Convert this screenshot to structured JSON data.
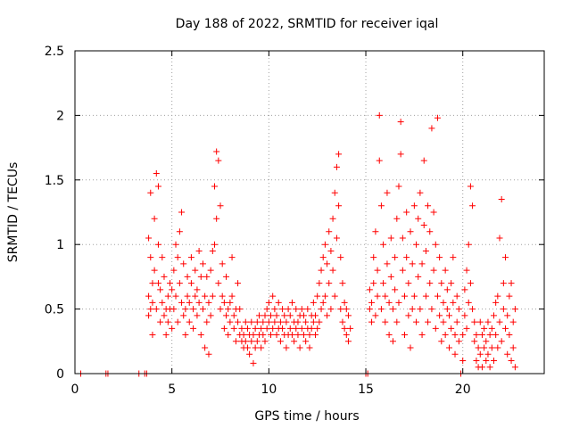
{
  "chart_data": {
    "type": "scatter",
    "title": "Day 188 of 2022, SRMTID for receiver iqal",
    "xlabel": "GPS time / hours",
    "ylabel": "SRMTID / TECUs",
    "xlim": [
      0,
      24.2
    ],
    "ylim": [
      0,
      2.5
    ],
    "xticks": [
      0,
      5,
      10,
      15,
      20
    ],
    "xtick_labels": [
      "0",
      "5",
      "10",
      "15",
      "20"
    ],
    "yticks": [
      0,
      0.5,
      1,
      1.5,
      2,
      2.5
    ],
    "ytick_labels": [
      "0",
      "0.5",
      "1",
      "1.5",
      "2",
      "2.5"
    ],
    "grid": true,
    "marker": "+",
    "color": "#ff0000",
    "points": [
      [
        0.3,
        0
      ],
      [
        1.6,
        0
      ],
      [
        1.7,
        0
      ],
      [
        3.3,
        0
      ],
      [
        3.6,
        0
      ],
      [
        3.7,
        0
      ],
      [
        3.8,
        0.45
      ],
      [
        3.8,
        0.6
      ],
      [
        3.8,
        1.05
      ],
      [
        3.9,
        1.4
      ],
      [
        3.9,
        0.9
      ],
      [
        3.9,
        0.5
      ],
      [
        4.0,
        0.55
      ],
      [
        4.0,
        0.3
      ],
      [
        4.0,
        0.7
      ],
      [
        4.1,
        1.2
      ],
      [
        4.1,
        0.8
      ],
      [
        4.2,
        1.55
      ],
      [
        4.2,
        0.5
      ],
      [
        4.3,
        1.45
      ],
      [
        4.3,
        1.0
      ],
      [
        4.3,
        0.7
      ],
      [
        4.4,
        0.65
      ],
      [
        4.4,
        0.4
      ],
      [
        4.5,
        0.55
      ],
      [
        4.5,
        0.9
      ],
      [
        4.6,
        0.45
      ],
      [
        4.6,
        0.75
      ],
      [
        4.7,
        0.5
      ],
      [
        4.7,
        0.3
      ],
      [
        4.8,
        0.6
      ],
      [
        4.8,
        0.4
      ],
      [
        4.9,
        0.7
      ],
      [
        4.9,
        0.5
      ],
      [
        5.0,
        0.35
      ],
      [
        5.0,
        0.65
      ],
      [
        5.1,
        0.8
      ],
      [
        5.1,
        0.5
      ],
      [
        5.2,
        1.0
      ],
      [
        5.2,
        0.6
      ],
      [
        5.3,
        0.9
      ],
      [
        5.3,
        0.4
      ],
      [
        5.4,
        1.1
      ],
      [
        5.4,
        0.7
      ],
      [
        5.5,
        1.25
      ],
      [
        5.5,
        0.55
      ],
      [
        5.6,
        0.45
      ],
      [
        5.6,
        0.85
      ],
      [
        5.7,
        0.5
      ],
      [
        5.7,
        0.3
      ],
      [
        5.8,
        0.6
      ],
      [
        5.8,
        0.75
      ],
      [
        5.9,
        0.4
      ],
      [
        5.9,
        0.55
      ],
      [
        6.0,
        0.7
      ],
      [
        6.0,
        0.9
      ],
      [
        6.1,
        0.5
      ],
      [
        6.1,
        0.35
      ],
      [
        6.2,
        0.6
      ],
      [
        6.2,
        0.8
      ],
      [
        6.3,
        0.45
      ],
      [
        6.3,
        0.65
      ],
      [
        6.4,
        0.95
      ],
      [
        6.4,
        0.55
      ],
      [
        6.5,
        0.75
      ],
      [
        6.5,
        0.3
      ],
      [
        6.6,
        0.85
      ],
      [
        6.6,
        0.5
      ],
      [
        6.7,
        0.6
      ],
      [
        6.7,
        0.2
      ],
      [
        6.8,
        0.75
      ],
      [
        6.8,
        0.4
      ],
      [
        6.9,
        0.55
      ],
      [
        6.9,
        0.15
      ],
      [
        7.0,
        0.8
      ],
      [
        7.0,
        0.45
      ],
      [
        7.1,
        0.95
      ],
      [
        7.1,
        0.6
      ],
      [
        7.2,
        1.45
      ],
      [
        7.2,
        1.0
      ],
      [
        7.3,
        1.72
      ],
      [
        7.3,
        1.2
      ],
      [
        7.4,
        1.65
      ],
      [
        7.4,
        0.7
      ],
      [
        7.5,
        1.3
      ],
      [
        7.5,
        0.5
      ],
      [
        7.6,
        0.6
      ],
      [
        7.6,
        0.85
      ],
      [
        7.7,
        0.35
      ],
      [
        7.7,
        0.55
      ],
      [
        7.8,
        0.45
      ],
      [
        7.8,
        0.75
      ],
      [
        7.9,
        0.5
      ],
      [
        7.9,
        0.3
      ],
      [
        8.0,
        0.55
      ],
      [
        8.0,
        0.4
      ],
      [
        8.1,
        0.9
      ],
      [
        8.1,
        0.6
      ],
      [
        8.2,
        0.45
      ],
      [
        8.2,
        0.35
      ],
      [
        8.3,
        0.5
      ],
      [
        8.3,
        0.25
      ],
      [
        8.4,
        0.7
      ],
      [
        8.4,
        0.4
      ],
      [
        8.5,
        0.3
      ],
      [
        8.5,
        0.5
      ],
      [
        8.6,
        0.25
      ],
      [
        8.6,
        0.35
      ],
      [
        8.7,
        0.3
      ],
      [
        8.7,
        0.2
      ],
      [
        8.8,
        0.4
      ],
      [
        8.8,
        0.25
      ],
      [
        8.9,
        0.2
      ],
      [
        8.9,
        0.35
      ],
      [
        9.0,
        0.3
      ],
      [
        9.0,
        0.15
      ],
      [
        9.1,
        0.25
      ],
      [
        9.1,
        0.4
      ],
      [
        9.2,
        0.08
      ],
      [
        9.2,
        0.3
      ],
      [
        9.3,
        0.35
      ],
      [
        9.3,
        0.2
      ],
      [
        9.4,
        0.4
      ],
      [
        9.4,
        0.25
      ],
      [
        9.5,
        0.3
      ],
      [
        9.5,
        0.45
      ],
      [
        9.6,
        0.35
      ],
      [
        9.6,
        0.2
      ],
      [
        9.7,
        0.4
      ],
      [
        9.7,
        0.3
      ],
      [
        9.8,
        0.45
      ],
      [
        9.8,
        0.25
      ],
      [
        9.9,
        0.35
      ],
      [
        9.9,
        0.5
      ],
      [
        10.0,
        0.4
      ],
      [
        10.0,
        0.55
      ],
      [
        10.1,
        0.3
      ],
      [
        10.1,
        0.45
      ],
      [
        10.2,
        0.6
      ],
      [
        10.2,
        0.35
      ],
      [
        10.3,
        0.5
      ],
      [
        10.3,
        0.4
      ],
      [
        10.4,
        0.45
      ],
      [
        10.4,
        0.3
      ],
      [
        10.5,
        0.55
      ],
      [
        10.5,
        0.35
      ],
      [
        10.6,
        0.4
      ],
      [
        10.6,
        0.25
      ],
      [
        10.7,
        0.5
      ],
      [
        10.7,
        0.35
      ],
      [
        10.8,
        0.45
      ],
      [
        10.8,
        0.3
      ],
      [
        10.9,
        0.4
      ],
      [
        10.9,
        0.2
      ],
      [
        11.0,
        0.5
      ],
      [
        11.0,
        0.3
      ],
      [
        11.1,
        0.35
      ],
      [
        11.1,
        0.45
      ],
      [
        11.2,
        0.3
      ],
      [
        11.2,
        0.55
      ],
      [
        11.3,
        0.4
      ],
      [
        11.3,
        0.25
      ],
      [
        11.4,
        0.35
      ],
      [
        11.4,
        0.5
      ],
      [
        11.5,
        0.3
      ],
      [
        11.5,
        0.4
      ],
      [
        11.6,
        0.45
      ],
      [
        11.6,
        0.2
      ],
      [
        11.7,
        0.35
      ],
      [
        11.7,
        0.5
      ],
      [
        11.8,
        0.3
      ],
      [
        11.8,
        0.45
      ],
      [
        11.9,
        0.25
      ],
      [
        11.9,
        0.4
      ],
      [
        12.0,
        0.35
      ],
      [
        12.0,
        0.5
      ],
      [
        12.1,
        0.3
      ],
      [
        12.1,
        0.2
      ],
      [
        12.2,
        0.45
      ],
      [
        12.2,
        0.35
      ],
      [
        12.3,
        0.4
      ],
      [
        12.3,
        0.55
      ],
      [
        12.4,
        0.3
      ],
      [
        12.4,
        0.45
      ],
      [
        12.5,
        0.6
      ],
      [
        12.5,
        0.35
      ],
      [
        12.6,
        0.7
      ],
      [
        12.6,
        0.4
      ],
      [
        12.7,
        0.8
      ],
      [
        12.7,
        0.5
      ],
      [
        12.8,
        0.9
      ],
      [
        12.8,
        0.55
      ],
      [
        12.9,
        1.0
      ],
      [
        12.9,
        0.6
      ],
      [
        13.0,
        0.85
      ],
      [
        13.0,
        0.45
      ],
      [
        13.1,
        1.1
      ],
      [
        13.1,
        0.7
      ],
      [
        13.2,
        0.95
      ],
      [
        13.2,
        0.5
      ],
      [
        13.3,
        1.2
      ],
      [
        13.3,
        0.8
      ],
      [
        13.4,
        1.4
      ],
      [
        13.4,
        0.6
      ],
      [
        13.5,
        1.6
      ],
      [
        13.5,
        1.05
      ],
      [
        13.6,
        1.7
      ],
      [
        13.6,
        1.3
      ],
      [
        13.7,
        0.9
      ],
      [
        13.7,
        0.5
      ],
      [
        13.8,
        0.7
      ],
      [
        13.8,
        0.4
      ],
      [
        13.9,
        0.55
      ],
      [
        13.9,
        0.35
      ],
      [
        14.0,
        0.5
      ],
      [
        14.0,
        0.3
      ],
      [
        14.1,
        0.45
      ],
      [
        14.1,
        0.25
      ],
      [
        14.2,
        0.35
      ],
      [
        15.0,
        0
      ],
      [
        15.1,
        0
      ],
      [
        15.2,
        0.5
      ],
      [
        15.2,
        0.65
      ],
      [
        15.3,
        0.55
      ],
      [
        15.3,
        0.4
      ],
      [
        15.4,
        0.7
      ],
      [
        15.4,
        0.9
      ],
      [
        15.5,
        0.45
      ],
      [
        15.5,
        1.1
      ],
      [
        15.6,
        0.6
      ],
      [
        15.6,
        0.8
      ],
      [
        15.7,
        2.0
      ],
      [
        15.7,
        1.65
      ],
      [
        15.8,
        1.3
      ],
      [
        15.8,
        0.5
      ],
      [
        15.9,
        0.7
      ],
      [
        15.9,
        1.0
      ],
      [
        16.0,
        0.4
      ],
      [
        16.0,
        0.6
      ],
      [
        16.1,
        0.85
      ],
      [
        16.1,
        1.4
      ],
      [
        16.2,
        0.3
      ],
      [
        16.2,
        0.55
      ],
      [
        16.3,
        0.75
      ],
      [
        16.3,
        1.05
      ],
      [
        16.4,
        0.5
      ],
      [
        16.4,
        0.25
      ],
      [
        16.5,
        0.65
      ],
      [
        16.5,
        0.9
      ],
      [
        16.6,
        1.2
      ],
      [
        16.6,
        0.4
      ],
      [
        16.7,
        0.55
      ],
      [
        16.7,
        1.45
      ],
      [
        16.8,
        1.95
      ],
      [
        16.8,
        1.7
      ],
      [
        16.9,
        0.8
      ],
      [
        16.9,
        1.05
      ],
      [
        17.0,
        0.6
      ],
      [
        17.0,
        0.3
      ],
      [
        17.1,
        0.9
      ],
      [
        17.1,
        1.25
      ],
      [
        17.2,
        0.45
      ],
      [
        17.2,
        0.7
      ],
      [
        17.3,
        1.1
      ],
      [
        17.3,
        0.2
      ],
      [
        17.4,
        0.5
      ],
      [
        17.4,
        0.85
      ],
      [
        17.5,
        1.3
      ],
      [
        17.5,
        0.6
      ],
      [
        17.6,
        0.4
      ],
      [
        17.6,
        1.0
      ],
      [
        17.7,
        0.75
      ],
      [
        17.7,
        1.2
      ],
      [
        17.8,
        1.4
      ],
      [
        17.8,
        0.5
      ],
      [
        17.9,
        0.3
      ],
      [
        17.9,
        0.85
      ],
      [
        18.0,
        1.15
      ],
      [
        18.0,
        1.65
      ],
      [
        18.1,
        0.6
      ],
      [
        18.1,
        0.95
      ],
      [
        18.2,
        1.3
      ],
      [
        18.2,
        0.4
      ],
      [
        18.3,
        0.7
      ],
      [
        18.3,
        1.1
      ],
      [
        18.4,
        1.9
      ],
      [
        18.4,
        0.5
      ],
      [
        18.5,
        1.25
      ],
      [
        18.5,
        0.8
      ],
      [
        18.6,
        0.35
      ],
      [
        18.6,
        1.0
      ],
      [
        18.7,
        1.98
      ],
      [
        18.7,
        0.6
      ],
      [
        18.8,
        0.45
      ],
      [
        18.8,
        0.9
      ],
      [
        18.9,
        0.7
      ],
      [
        18.9,
        0.25
      ],
      [
        19.0,
        0.55
      ],
      [
        19.0,
        0.4
      ],
      [
        19.1,
        0.8
      ],
      [
        19.1,
        0.3
      ],
      [
        19.2,
        0.5
      ],
      [
        19.2,
        0.65
      ],
      [
        19.3,
        0.2
      ],
      [
        19.3,
        0.45
      ],
      [
        19.4,
        0.7
      ],
      [
        19.4,
        0.35
      ],
      [
        19.5,
        0.55
      ],
      [
        19.5,
        0.9
      ],
      [
        19.6,
        0.3
      ],
      [
        19.6,
        0.15
      ],
      [
        19.7,
        0.6
      ],
      [
        19.7,
        0.4
      ],
      [
        19.8,
        0.25
      ],
      [
        19.8,
        0.5
      ],
      [
        19.9,
        0
      ],
      [
        20.0,
        0.1
      ],
      [
        20.0,
        0.3
      ],
      [
        20.1,
        0.45
      ],
      [
        20.1,
        0.65
      ],
      [
        20.2,
        0.8
      ],
      [
        20.2,
        0.35
      ],
      [
        20.3,
        1.0
      ],
      [
        20.3,
        0.55
      ],
      [
        20.4,
        1.45
      ],
      [
        20.4,
        0.7
      ],
      [
        20.5,
        1.3
      ],
      [
        20.5,
        0.5
      ],
      [
        20.6,
        0.25
      ],
      [
        20.6,
        0.4
      ],
      [
        20.7,
        0.1
      ],
      [
        20.7,
        0.3
      ],
      [
        20.8,
        0.05
      ],
      [
        20.8,
        0.2
      ],
      [
        20.9,
        0.4
      ],
      [
        20.9,
        0.15
      ],
      [
        21.0,
        0.3
      ],
      [
        21.0,
        0.05
      ],
      [
        21.1,
        0.2
      ],
      [
        21.1,
        0.35
      ],
      [
        21.2,
        0.1
      ],
      [
        21.2,
        0.25
      ],
      [
        21.3,
        0.4
      ],
      [
        21.3,
        0.15
      ],
      [
        21.4,
        0.3
      ],
      [
        21.4,
        0.05
      ],
      [
        21.5,
        0.2
      ],
      [
        21.5,
        0.35
      ],
      [
        21.6,
        0.45
      ],
      [
        21.6,
        0.1
      ],
      [
        21.7,
        0.3
      ],
      [
        21.7,
        0.55
      ],
      [
        21.8,
        0.2
      ],
      [
        21.8,
        0.6
      ],
      [
        21.9,
        1.05
      ],
      [
        21.9,
        0.4
      ],
      [
        22.0,
        1.35
      ],
      [
        22.0,
        0.25
      ],
      [
        22.1,
        0.5
      ],
      [
        22.1,
        0.7
      ],
      [
        22.2,
        0.35
      ],
      [
        22.2,
        0.9
      ],
      [
        22.3,
        0.45
      ],
      [
        22.3,
        0.15
      ],
      [
        22.4,
        0.6
      ],
      [
        22.4,
        0.3
      ],
      [
        22.5,
        0.7
      ],
      [
        22.5,
        0.1
      ],
      [
        22.6,
        0.4
      ],
      [
        22.6,
        0.2
      ],
      [
        22.7,
        0.5
      ],
      [
        22.7,
        0.05
      ]
    ]
  }
}
